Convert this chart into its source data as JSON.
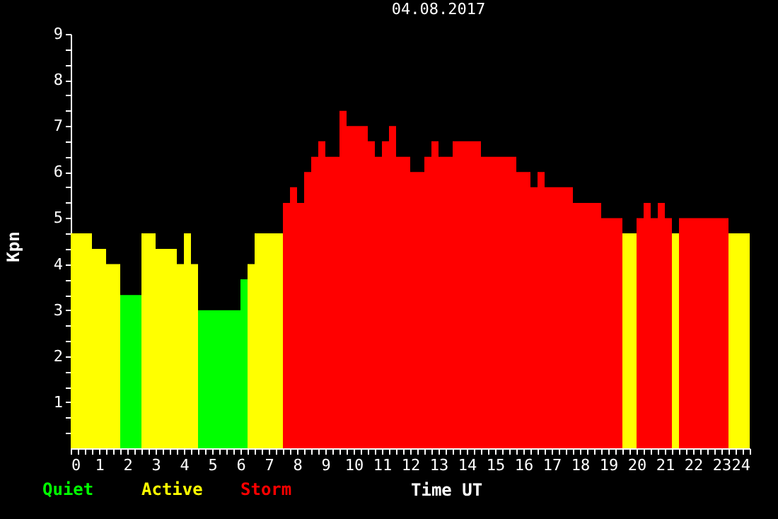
{
  "chart_data": {
    "type": "histogram",
    "title": "04.08.2017",
    "xlabel": "Time UT",
    "ylabel": "Kpn",
    "bins": [
      0,
      0.75,
      1.25,
      1.75,
      2.5,
      3,
      3.75,
      4,
      4.25,
      4.5,
      6,
      6.25,
      6.5,
      7.5,
      7.75,
      8,
      8.25,
      8.5,
      8.75,
      9,
      9.5,
      9.75,
      10.5,
      10.75,
      11,
      11.25,
      11.5,
      12,
      12.5,
      12.75,
      13,
      13.5,
      14.5,
      15.75,
      16.25,
      16.5,
      16.75,
      17.75,
      18.75,
      19.5,
      20,
      20.25,
      20.5,
      20.75,
      21,
      21.25,
      21.5,
      23.25,
      24
    ],
    "series": [
      {
        "name": "Quiet",
        "color": "#00ff00",
        "values": [
          null,
          null,
          null,
          3.33,
          null,
          null,
          null,
          null,
          null,
          3.0,
          3.67,
          null,
          null,
          null,
          null,
          null,
          null,
          null,
          null,
          null,
          null,
          null,
          null,
          null,
          null,
          null,
          null,
          null,
          null,
          null,
          null,
          null,
          null,
          null,
          null,
          null,
          null,
          null,
          null,
          null,
          null,
          null,
          null,
          null,
          null,
          null,
          null,
          null
        ]
      },
      {
        "name": "Active",
        "color": "#ffff00",
        "values": [
          4.67,
          4.33,
          4.0,
          null,
          4.67,
          4.33,
          4.0,
          4.67,
          4.0,
          null,
          null,
          4.0,
          4.67,
          null,
          null,
          null,
          null,
          null,
          null,
          null,
          null,
          null,
          null,
          null,
          null,
          null,
          null,
          null,
          null,
          null,
          null,
          null,
          null,
          null,
          null,
          null,
          null,
          null,
          null,
          4.67,
          null,
          null,
          null,
          null,
          null,
          4.67,
          null,
          4.67
        ]
      },
      {
        "name": "Storm",
        "color": "#ff0000",
        "values": [
          null,
          null,
          null,
          null,
          null,
          null,
          null,
          null,
          null,
          null,
          null,
          null,
          null,
          5.33,
          5.67,
          5.33,
          6.0,
          6.33,
          6.67,
          6.33,
          7.33,
          7.0,
          6.67,
          6.33,
          6.67,
          7.0,
          6.33,
          6.0,
          6.33,
          6.67,
          6.33,
          6.67,
          6.33,
          6.0,
          5.67,
          6.0,
          5.67,
          5.33,
          5.0,
          null,
          5.0,
          5.33,
          5.0,
          5.33,
          5.0,
          null,
          5.0,
          null
        ]
      }
    ],
    "xlim": [
      0,
      24
    ],
    "ylim": [
      0,
      9
    ],
    "xticks": [
      0,
      {
        "value": 0.25,
        "label": null
      },
      {
        "value": 0.5,
        "label": null
      },
      {
        "value": 0.75,
        "label": null
      },
      1,
      {
        "value": 1.25,
        "label": null
      },
      {
        "value": 1.5,
        "label": null
      },
      {
        "value": 1.75,
        "label": null
      },
      2,
      {
        "value": 2.25,
        "label": null
      },
      {
        "value": 2.5,
        "label": null
      },
      {
        "value": 2.75,
        "label": null
      },
      3,
      {
        "value": 3.25,
        "label": null
      },
      {
        "value": 3.5,
        "label": null
      },
      {
        "value": 3.75,
        "label": null
      },
      4,
      {
        "value": 4.25,
        "label": null
      },
      {
        "value": 4.5,
        "label": null
      },
      {
        "value": 4.75,
        "label": null
      },
      5,
      {
        "value": 5.25,
        "label": null
      },
      {
        "value": 5.5,
        "label": null
      },
      {
        "value": 5.75,
        "label": null
      },
      6,
      {
        "value": 6.25,
        "label": null
      },
      {
        "value": 6.5,
        "label": null
      },
      {
        "value": 6.75,
        "label": null
      },
      7,
      {
        "value": 7.25,
        "label": null
      },
      {
        "value": 7.5,
        "label": null
      },
      {
        "value": 7.75,
        "label": null
      },
      8,
      {
        "value": 8.25,
        "label": null
      },
      {
        "value": 8.5,
        "label": null
      },
      {
        "value": 8.75,
        "label": null
      },
      9,
      {
        "value": 9.25,
        "label": null
      },
      {
        "value": 9.5,
        "label": null
      },
      {
        "value": 9.75,
        "label": null
      },
      10,
      {
        "value": 10.25,
        "label": null
      },
      {
        "value": 10.5,
        "label": null
      },
      {
        "value": 10.75,
        "label": null
      },
      11,
      {
        "value": 11.25,
        "label": null
      },
      {
        "value": 11.5,
        "label": null
      },
      {
        "value": 11.75,
        "label": null
      },
      12,
      {
        "value": 12.25,
        "label": null
      },
      {
        "value": 12.5,
        "label": null
      },
      {
        "value": 12.75,
        "label": null
      },
      13,
      {
        "value": 13.25,
        "label": null
      },
      {
        "value": 13.5,
        "label": null
      },
      {
        "value": 13.75,
        "label": null
      },
      14,
      {
        "value": 14.25,
        "label": null
      },
      {
        "value": 14.5,
        "label": null
      },
      {
        "value": 14.75,
        "label": null
      },
      15,
      {
        "value": 15.25,
        "label": null
      },
      {
        "value": 15.5,
        "label": null
      },
      {
        "value": 15.75,
        "label": null
      },
      16,
      {
        "value": 16.25,
        "label": null
      },
      {
        "value": 16.5,
        "label": null
      },
      {
        "value": 16.75,
        "label": null
      },
      17,
      {
        "value": 17.25,
        "label": null
      },
      {
        "value": 17.5,
        "label": null
      },
      {
        "value": 17.75,
        "label": null
      },
      18,
      {
        "value": 18.25,
        "label": null
      },
      {
        "value": 18.5,
        "label": null
      },
      {
        "value": 18.75,
        "label": null
      },
      19,
      {
        "value": 19.25,
        "label": null
      },
      {
        "value": 19.5,
        "label": null
      },
      {
        "value": 19.75,
        "label": null
      },
      20,
      {
        "value": 20.25,
        "label": null
      },
      {
        "value": 20.5,
        "label": null
      },
      {
        "value": 20.75,
        "label": null
      },
      21,
      {
        "value": 21.25,
        "label": null
      },
      {
        "value": 21.5,
        "label": null
      },
      {
        "value": 21.75,
        "label": null
      },
      22,
      {
        "value": 22.25,
        "label": null
      },
      {
        "value": 22.5,
        "label": null
      },
      {
        "value": 22.75,
        "label": null
      },
      23,
      {
        "value": 23.25,
        "label": null
      },
      {
        "value": 23.5,
        "label": null
      },
      {
        "value": 23.75,
        "label": null
      },
      24
    ],
    "yticks": [
      {
        "value": 0.33,
        "label": null
      },
      {
        "value": 0.67,
        "label": null
      },
      1,
      {
        "value": 1.33,
        "label": null
      },
      {
        "value": 1.67,
        "label": null
      },
      2,
      {
        "value": 2.33,
        "label": null
      },
      {
        "value": 2.67,
        "label": null
      },
      3,
      {
        "value": 3.33,
        "label": null
      },
      {
        "value": 3.67,
        "label": null
      },
      4,
      {
        "value": 4.33,
        "label": null
      },
      {
        "value": 4.67,
        "label": null
      },
      5,
      {
        "value": 5.33,
        "label": null
      },
      {
        "value": 5.67,
        "label": null
      },
      6,
      {
        "value": 6.33,
        "label": null
      },
      {
        "value": 6.67,
        "label": null
      },
      7,
      {
        "value": 7.33,
        "label": null
      },
      {
        "value": 7.67,
        "label": null
      },
      8,
      {
        "value": 8.33,
        "label": null
      },
      {
        "value": 8.67,
        "label": null
      },
      9
    ],
    "grid": false,
    "legend": "bottom left"
  }
}
